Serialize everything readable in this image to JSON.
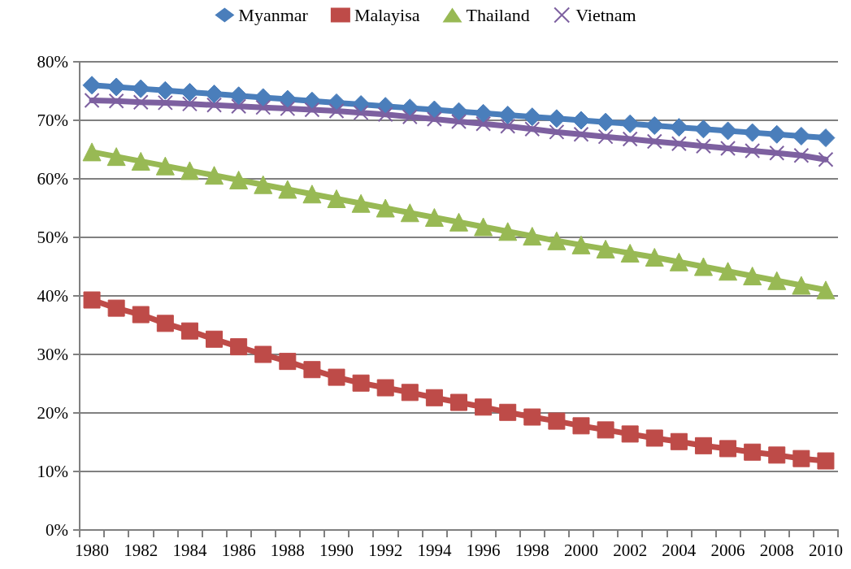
{
  "chart_data": {
    "type": "line",
    "categories": [
      "1980",
      null,
      "1982",
      null,
      "1984",
      null,
      "1986",
      null,
      "1988",
      null,
      "1990",
      null,
      "1992",
      null,
      "1994",
      null,
      "1996",
      null,
      "1998",
      null,
      "2000",
      null,
      "2002",
      null,
      "2004",
      null,
      "2006",
      null,
      "2008",
      null,
      "2010"
    ],
    "series": [
      {
        "name": "Myanmar",
        "color": "#4a7ebb",
        "marker": "diamond",
        "values": [
          76.0,
          75.7,
          75.4,
          75.1,
          74.8,
          74.5,
          74.2,
          73.9,
          73.6,
          73.3,
          73.0,
          72.7,
          72.4,
          72.1,
          71.8,
          71.5,
          71.2,
          70.9,
          70.6,
          70.3,
          70.0,
          69.7,
          69.4,
          69.1,
          68.8,
          68.5,
          68.2,
          67.9,
          67.6,
          67.3,
          67.0
        ]
      },
      {
        "name": "Malayisa",
        "color": "#be4b48",
        "marker": "square",
        "values": [
          39.3,
          37.9,
          36.8,
          35.3,
          34.0,
          32.6,
          31.3,
          30.0,
          28.8,
          27.4,
          26.1,
          25.1,
          24.3,
          23.5,
          22.6,
          21.8,
          21.0,
          20.1,
          19.3,
          18.6,
          17.8,
          17.1,
          16.4,
          15.7,
          15.1,
          14.4,
          13.9,
          13.3,
          12.8,
          12.2,
          11.8
        ]
      },
      {
        "name": "Thailand",
        "color": "#98b954",
        "marker": "triangle",
        "values": [
          64.6,
          63.8,
          63.0,
          62.2,
          61.4,
          60.6,
          59.8,
          59.0,
          58.2,
          57.4,
          56.6,
          55.8,
          55.0,
          54.2,
          53.4,
          52.6,
          51.8,
          51.0,
          50.2,
          49.4,
          48.7,
          48.0,
          47.3,
          46.6,
          45.8,
          45.0,
          44.2,
          43.4,
          42.6,
          41.8,
          41.0
        ]
      },
      {
        "name": "Vietnam",
        "color": "#7d60a0",
        "marker": "cross",
        "values": [
          73.4,
          73.3,
          73.1,
          73.0,
          72.8,
          72.6,
          72.4,
          72.2,
          72.0,
          71.8,
          71.6,
          71.3,
          71.0,
          70.6,
          70.2,
          69.8,
          69.4,
          69.0,
          68.5,
          68.0,
          67.6,
          67.2,
          66.8,
          66.4,
          66.0,
          65.6,
          65.2,
          64.8,
          64.4,
          64.0,
          63.3
        ]
      }
    ],
    "ylim": [
      0,
      80
    ],
    "yticks": [
      {
        "value": 0,
        "label": "0%"
      },
      {
        "value": 10,
        "label": "10%"
      },
      {
        "value": 20,
        "label": "20%"
      },
      {
        "value": 30,
        "label": "30%"
      },
      {
        "value": 40,
        "label": "40%"
      },
      {
        "value": 50,
        "label": "50%"
      },
      {
        "value": 60,
        "label": "60%"
      },
      {
        "value": 70,
        "label": "70%"
      },
      {
        "value": 80,
        "label": "80%"
      }
    ],
    "grid": "y",
    "legend": "top",
    "line_style": "solid"
  }
}
